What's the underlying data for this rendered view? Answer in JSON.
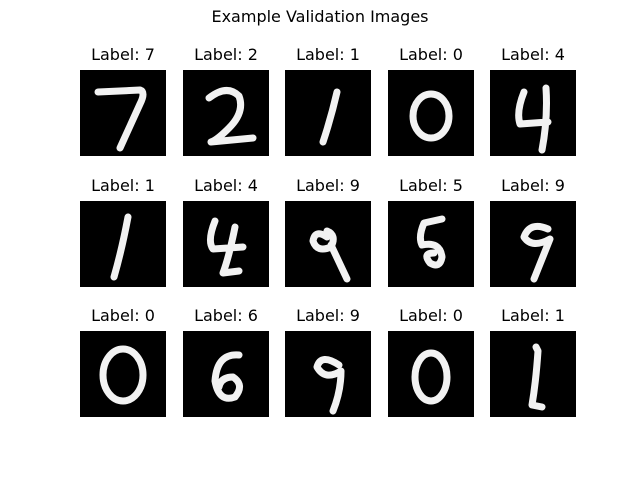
{
  "figure": {
    "title": "Example Validation Images"
  },
  "cells": [
    {
      "label": "Label: 7",
      "digit": "7"
    },
    {
      "label": "Label: 2",
      "digit": "2"
    },
    {
      "label": "Label: 1",
      "digit": "1"
    },
    {
      "label": "Label: 0",
      "digit": "0"
    },
    {
      "label": "Label: 4",
      "digit": "4"
    },
    {
      "label": "Label: 1",
      "digit": "1"
    },
    {
      "label": "Label: 4",
      "digit": "4"
    },
    {
      "label": "Label: 9",
      "digit": "9"
    },
    {
      "label": "Label: 5",
      "digit": "5"
    },
    {
      "label": "Label: 9",
      "digit": "9"
    },
    {
      "label": "Label: 0",
      "digit": "0"
    },
    {
      "label": "Label: 6",
      "digit": "6"
    },
    {
      "label": "Label: 9",
      "digit": "9"
    },
    {
      "label": "Label: 0",
      "digit": "0"
    },
    {
      "label": "Label: 1",
      "digit": "1"
    }
  ],
  "colors": {
    "image_background": "#000000",
    "stroke": "#f2f2f2"
  }
}
